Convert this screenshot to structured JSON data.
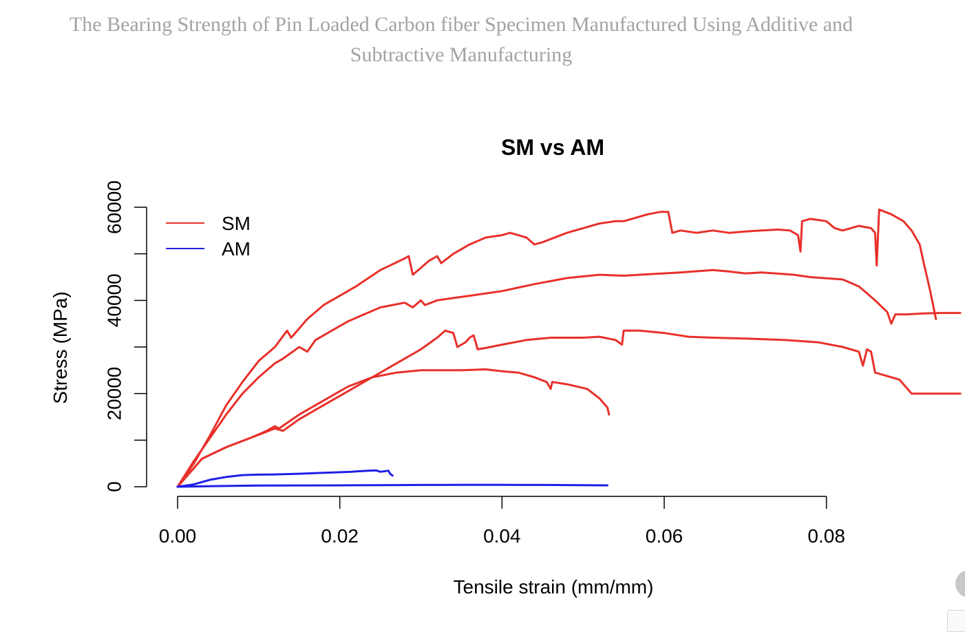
{
  "page_title": "The Bearing Strength of Pin Loaded Carbon fiber Specimen Manufactured Using Additive and Subtractive Manufacturing",
  "chart_data": {
    "type": "line",
    "title": "SM vs AM",
    "xlabel": "Tensile strain (mm/mm)",
    "ylabel": "Stress (MPa)",
    "xlim": [
      0,
      0.097
    ],
    "ylim": [
      0,
      60000
    ],
    "x_ticks": [
      "0.00",
      "0.02",
      "0.04",
      "0.06",
      "0.08"
    ],
    "x_tick_values": [
      0,
      0.02,
      0.04,
      0.06,
      0.08
    ],
    "y_ticks": [
      "0",
      "20000",
      "40000",
      "60000"
    ],
    "y_tick_values": [
      0,
      20000,
      40000,
      60000
    ],
    "y_minor_tick_values": [
      10000,
      30000,
      50000
    ],
    "grid": false,
    "legend": {
      "position": "top-left",
      "entries": [
        {
          "label": "SM",
          "color": "#e8302a"
        },
        {
          "label": "AM",
          "color": "#1f1fe6"
        }
      ]
    },
    "series": [
      {
        "legend": "SM",
        "color": "#e8302a",
        "points": [
          [
            0,
            0
          ],
          [
            0.002,
            5000
          ],
          [
            0.004,
            11000
          ],
          [
            0.006,
            17500
          ],
          [
            0.008,
            22500
          ],
          [
            0.01,
            27000
          ],
          [
            0.012,
            30000
          ],
          [
            0.0135,
            33500
          ],
          [
            0.014,
            32000
          ],
          [
            0.016,
            36000
          ],
          [
            0.018,
            39000
          ],
          [
            0.0195,
            40500
          ],
          [
            0.022,
            43000
          ],
          [
            0.025,
            46500
          ],
          [
            0.028,
            49000
          ],
          [
            0.0285,
            49500
          ],
          [
            0.029,
            45500
          ],
          [
            0.03,
            47000
          ],
          [
            0.031,
            48500
          ],
          [
            0.032,
            49500
          ],
          [
            0.0325,
            48000
          ],
          [
            0.034,
            50000
          ],
          [
            0.036,
            52000
          ],
          [
            0.038,
            53500
          ],
          [
            0.04,
            54000
          ],
          [
            0.041,
            54500
          ],
          [
            0.042,
            54000
          ],
          [
            0.043,
            53500
          ],
          [
            0.044,
            52000
          ],
          [
            0.045,
            52500
          ],
          [
            0.048,
            54500
          ],
          [
            0.05,
            55500
          ],
          [
            0.052,
            56500
          ],
          [
            0.054,
            57000
          ],
          [
            0.055,
            57000
          ],
          [
            0.056,
            57500
          ],
          [
            0.058,
            58500
          ],
          [
            0.0595,
            59000
          ],
          [
            0.0605,
            59000
          ],
          [
            0.061,
            54500
          ],
          [
            0.062,
            55000
          ],
          [
            0.064,
            54500
          ],
          [
            0.066,
            55000
          ],
          [
            0.068,
            54500
          ],
          [
            0.07,
            54800
          ],
          [
            0.072,
            55000
          ],
          [
            0.074,
            55200
          ],
          [
            0.0755,
            55000
          ],
          [
            0.0765,
            54000
          ],
          [
            0.0768,
            50500
          ],
          [
            0.077,
            57000
          ],
          [
            0.078,
            57500
          ],
          [
            0.08,
            57000
          ],
          [
            0.081,
            55500
          ],
          [
            0.082,
            55000
          ],
          [
            0.084,
            56000
          ],
          [
            0.0855,
            55500
          ],
          [
            0.086,
            54500
          ],
          [
            0.0862,
            47500
          ],
          [
            0.0865,
            59500
          ],
          [
            0.088,
            58500
          ],
          [
            0.0895,
            57000
          ],
          [
            0.0905,
            55000
          ],
          [
            0.0915,
            52000
          ],
          [
            0.092,
            48000
          ],
          [
            0.0928,
            42000
          ],
          [
            0.0935,
            36000
          ]
        ]
      },
      {
        "legend": "SM",
        "color": "#e8302a",
        "points": [
          [
            0,
            0
          ],
          [
            0.002,
            5500
          ],
          [
            0.004,
            10500
          ],
          [
            0.006,
            15500
          ],
          [
            0.008,
            20000
          ],
          [
            0.01,
            23500
          ],
          [
            0.012,
            26500
          ],
          [
            0.013,
            27500
          ],
          [
            0.015,
            30000
          ],
          [
            0.016,
            29000
          ],
          [
            0.017,
            31500
          ],
          [
            0.019,
            33500
          ],
          [
            0.021,
            35500
          ],
          [
            0.023,
            37000
          ],
          [
            0.025,
            38500
          ],
          [
            0.0265,
            39000
          ],
          [
            0.028,
            39500
          ],
          [
            0.029,
            38500
          ],
          [
            0.03,
            40000
          ],
          [
            0.0305,
            39000
          ],
          [
            0.032,
            40000
          ],
          [
            0.034,
            40500
          ],
          [
            0.036,
            41000
          ],
          [
            0.04,
            42000
          ],
          [
            0.044,
            43500
          ],
          [
            0.048,
            44800
          ],
          [
            0.052,
            45500
          ],
          [
            0.055,
            45300
          ],
          [
            0.058,
            45600
          ],
          [
            0.062,
            46000
          ],
          [
            0.066,
            46500
          ],
          [
            0.068,
            46200
          ],
          [
            0.07,
            45800
          ],
          [
            0.072,
            46000
          ],
          [
            0.076,
            45500
          ],
          [
            0.078,
            45000
          ],
          [
            0.082,
            44500
          ],
          [
            0.084,
            43000
          ],
          [
            0.086,
            40000
          ],
          [
            0.0875,
            37500
          ],
          [
            0.088,
            35000
          ],
          [
            0.0885,
            37000
          ],
          [
            0.09,
            37000
          ],
          [
            0.092,
            37200
          ],
          [
            0.094,
            37300
          ],
          [
            0.0965,
            37300
          ]
        ]
      },
      {
        "legend": "SM",
        "color": "#e8302a",
        "points": [
          [
            0,
            0
          ],
          [
            0.003,
            6000
          ],
          [
            0.006,
            8500
          ],
          [
            0.009,
            10500
          ],
          [
            0.012,
            12500
          ],
          [
            0.013,
            12000
          ],
          [
            0.015,
            14500
          ],
          [
            0.018,
            17500
          ],
          [
            0.021,
            20500
          ],
          [
            0.024,
            23500
          ],
          [
            0.027,
            26500
          ],
          [
            0.03,
            29500
          ],
          [
            0.032,
            32000
          ],
          [
            0.033,
            33500
          ],
          [
            0.034,
            33000
          ],
          [
            0.0345,
            30000
          ],
          [
            0.0355,
            31000
          ],
          [
            0.036,
            32000
          ],
          [
            0.0365,
            32500
          ],
          [
            0.037,
            29500
          ],
          [
            0.038,
            29800
          ],
          [
            0.04,
            30500
          ],
          [
            0.043,
            31500
          ],
          [
            0.046,
            32000
          ],
          [
            0.05,
            32000
          ],
          [
            0.052,
            32200
          ],
          [
            0.054,
            31500
          ],
          [
            0.0548,
            30500
          ],
          [
            0.055,
            33500
          ],
          [
            0.057,
            33500
          ],
          [
            0.06,
            33000
          ],
          [
            0.063,
            32200
          ],
          [
            0.066,
            32000
          ],
          [
            0.07,
            31800
          ],
          [
            0.075,
            31500
          ],
          [
            0.079,
            31000
          ],
          [
            0.082,
            30000
          ],
          [
            0.084,
            29000
          ],
          [
            0.0845,
            26000
          ],
          [
            0.085,
            29500
          ],
          [
            0.0855,
            29000
          ],
          [
            0.086,
            24500
          ],
          [
            0.087,
            24000
          ],
          [
            0.089,
            23000
          ],
          [
            0.09,
            21000
          ],
          [
            0.0905,
            20000
          ],
          [
            0.0965,
            20000
          ]
        ]
      },
      {
        "legend": "SM",
        "color": "#e8302a",
        "points": [
          [
            0,
            0
          ],
          [
            0.003,
            6000
          ],
          [
            0.006,
            8500
          ],
          [
            0.009,
            10500
          ],
          [
            0.011,
            12000
          ],
          [
            0.012,
            13000
          ],
          [
            0.0125,
            12500
          ],
          [
            0.015,
            15500
          ],
          [
            0.018,
            18500
          ],
          [
            0.021,
            21500
          ],
          [
            0.024,
            23500
          ],
          [
            0.027,
            24500
          ],
          [
            0.03,
            25000
          ],
          [
            0.032,
            25000
          ],
          [
            0.035,
            25000
          ],
          [
            0.038,
            25200
          ],
          [
            0.04,
            24800
          ],
          [
            0.042,
            24500
          ],
          [
            0.044,
            23500
          ],
          [
            0.0455,
            22500
          ],
          [
            0.046,
            21000
          ],
          [
            0.0462,
            22500
          ],
          [
            0.048,
            22000
          ],
          [
            0.0505,
            21000
          ],
          [
            0.052,
            19000
          ],
          [
            0.053,
            17000
          ],
          [
            0.0532,
            15500
          ]
        ]
      },
      {
        "legend": "AM",
        "color": "#1f1fe6",
        "points": [
          [
            0,
            0
          ],
          [
            0.002,
            500
          ],
          [
            0.004,
            1500
          ],
          [
            0.006,
            2100
          ],
          [
            0.008,
            2500
          ],
          [
            0.01,
            2600
          ],
          [
            0.012,
            2650
          ],
          [
            0.015,
            2800
          ],
          [
            0.018,
            3000
          ],
          [
            0.0215,
            3200
          ],
          [
            0.022,
            3300
          ],
          [
            0.0235,
            3450
          ],
          [
            0.0245,
            3500
          ],
          [
            0.025,
            3200
          ],
          [
            0.026,
            3450
          ],
          [
            0.0262,
            2800
          ],
          [
            0.0265,
            2400
          ]
        ]
      },
      {
        "legend": "AM",
        "color": "#1f1fe6",
        "points": [
          [
            0,
            0
          ],
          [
            0.005,
            150
          ],
          [
            0.01,
            250
          ],
          [
            0.02,
            300
          ],
          [
            0.027,
            350
          ],
          [
            0.03,
            380
          ],
          [
            0.035,
            420
          ],
          [
            0.04,
            400
          ],
          [
            0.045,
            380
          ],
          [
            0.05,
            320
          ],
          [
            0.053,
            300
          ]
        ]
      }
    ]
  }
}
